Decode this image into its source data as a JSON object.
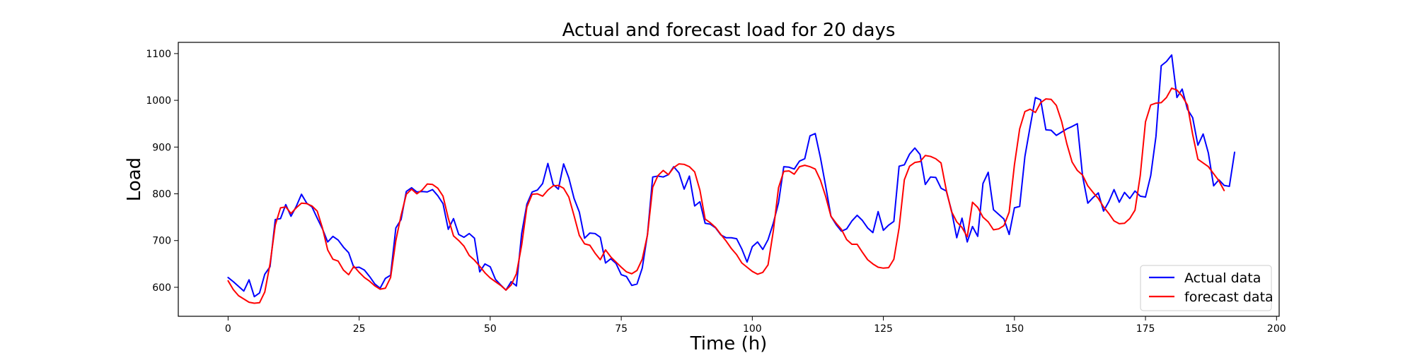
{
  "chart_data": {
    "type": "line",
    "title": "Actual and forecast load for 20 days",
    "xlabel": "Time (h)",
    "ylabel": "Load",
    "xlim": [
      -9.5,
      200.5
    ],
    "ylim": [
      538,
      1124
    ],
    "xticks": [
      0,
      25,
      50,
      75,
      100,
      125,
      150,
      175,
      200
    ],
    "yticks": [
      600,
      700,
      800,
      900,
      1000,
      1100
    ],
    "grid": false,
    "legend_position": "bottom-right",
    "x_start": 0,
    "x_step": 1,
    "series": [
      {
        "name": "Actual data",
        "color": "#0000ff",
        "values": [
          621,
          612,
          602,
          592,
          616,
          580,
          588,
          628,
          644,
          745,
          747,
          777,
          752,
          773,
          799,
          780,
          772,
          748,
          725,
          697,
          709,
          701,
          686,
          674,
          642,
          643,
          637,
          623,
          607,
          598,
          619,
          626,
          727,
          745,
          805,
          813,
          804,
          805,
          804,
          809,
          796,
          779,
          724,
          747,
          713,
          707,
          715,
          705,
          633,
          650,
          644,
          617,
          605,
          594,
          612,
          603,
          715,
          778,
          804,
          808,
          822,
          865,
          820,
          810,
          864,
          834,
          790,
          761,
          705,
          716,
          715,
          707,
          652,
          661,
          651,
          627,
          623,
          604,
          607,
          641,
          713,
          836,
          838,
          836,
          841,
          858,
          845,
          810,
          838,
          774,
          783,
          737,
          735,
          727,
          712,
          706,
          706,
          704,
          682,
          654,
          687,
          697,
          681,
          702,
          737,
          781,
          858,
          857,
          853,
          870,
          875,
          924,
          929,
          877,
          816,
          752,
          734,
          720,
          725,
          742,
          754,
          743,
          727,
          717,
          762,
          722,
          733,
          741,
          859,
          862,
          885,
          898,
          884,
          820,
          836,
          835,
          812,
          806,
          764,
          706,
          748,
          697,
          730,
          709,
          822,
          846,
          766,
          756,
          746,
          713,
          770,
          773,
          880,
          944,
          1006,
          1001,
          937,
          936,
          925,
          932,
          939,
          944,
          950,
          838,
          780,
          792,
          802,
          763,
          783,
          809,
          782,
          803,
          790,
          806,
          795,
          793,
          839,
          923,
          1074,
          1083,
          1097,
          1006,
          1024,
          981,
          963,
          904,
          928,
          887,
          817,
          830,
          818,
          816,
          889
        ]
      },
      {
        "name": "forecast data",
        "color": "#ff0000",
        "values": [
          614,
          595,
          582,
          575,
          568,
          566,
          567,
          590,
          650,
          733,
          770,
          772,
          758,
          770,
          780,
          779,
          774,
          763,
          727,
          680,
          660,
          656,
          637,
          627,
          645,
          632,
          621,
          613,
          603,
          596,
          598,
          621,
          700,
          754,
          799,
          810,
          800,
          808,
          821,
          820,
          812,
          795,
          748,
          710,
          700,
          688,
          668,
          658,
          645,
          631,
          620,
          612,
          604,
          594,
          605,
          629,
          690,
          772,
          799,
          800,
          795,
          808,
          817,
          818,
          812,
          793,
          753,
          711,
          693,
          690,
          673,
          659,
          680,
          665,
          654,
          643,
          633,
          629,
          636,
          660,
          712,
          814,
          839,
          850,
          841,
          856,
          864,
          863,
          858,
          847,
          808,
          746,
          738,
          728,
          713,
          699,
          683,
          670,
          652,
          643,
          634,
          628,
          632,
          648,
          720,
          813,
          848,
          849,
          842,
          858,
          861,
          858,
          853,
          829,
          794,
          752,
          737,
          724,
          702,
          692,
          692,
          675,
          659,
          650,
          643,
          641,
          642,
          660,
          727,
          830,
          859,
          867,
          869,
          882,
          880,
          875,
          866,
          808,
          762,
          740,
          728,
          708,
          782,
          771,
          750,
          740,
          723,
          725,
          732,
          761,
          862,
          939,
          976,
          981,
          974,
          995,
          1003,
          1002,
          989,
          955,
          907,
          868,
          850,
          840,
          817,
          803,
          790,
          772,
          758,
          742,
          736,
          737,
          747,
          765,
          839,
          954,
          990,
          994,
          995,
          1006,
          1026,
          1022,
          1009,
          990,
          927,
          874,
          866,
          858,
          843,
          828,
          807
        ]
      }
    ]
  }
}
